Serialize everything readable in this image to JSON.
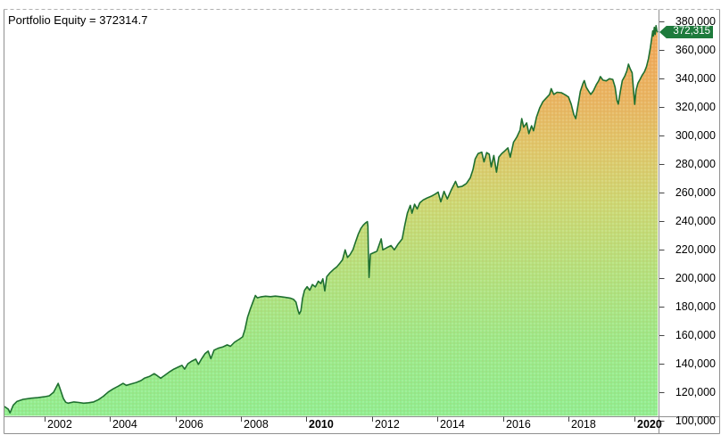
{
  "window": {
    "title": "Portfolio Equity = 372314.7"
  },
  "value_badge": {
    "label": "372,315"
  },
  "chart_data": {
    "type": "area",
    "title": "Portfolio Equity",
    "last_value": 372315,
    "x_axis": {
      "range": [
        2000.78,
        2020.72
      ],
      "ticks": [
        2002,
        2004,
        2006,
        2008,
        2010,
        2012,
        2014,
        2016,
        2018,
        2020
      ],
      "bold_ticks": [
        2010,
        2020
      ]
    },
    "y_axis": {
      "range": [
        103125,
        388125
      ],
      "tick_step": 20000,
      "ticks": [
        100000,
        120000,
        140000,
        160000,
        180000,
        200000,
        220000,
        240000,
        260000,
        280000,
        300000,
        320000,
        340000,
        360000,
        380000
      ]
    },
    "colors": {
      "line": "#1E7030",
      "badge": "#1E7B3C",
      "border": "#909090",
      "border_top": "#b0b0b0",
      "tick": "#444444",
      "text": "#000000",
      "gradient": [
        [
          0.0,
          "#90EE90"
        ],
        [
          0.19,
          "#9EE887"
        ],
        [
          0.37,
          "#B6E07C"
        ],
        [
          0.52,
          "#CCD873"
        ],
        [
          0.66,
          "#DFC76A"
        ],
        [
          0.77,
          "#E8B662"
        ],
        [
          0.9,
          "#EFAA5A"
        ],
        [
          1.0,
          "#F0A757"
        ]
      ]
    },
    "series": [
      {
        "name": "Portfolio Equity",
        "points": [
          [
            2000.78,
            110000
          ],
          [
            2000.9,
            108000
          ],
          [
            2000.95,
            105500
          ],
          [
            2001.05,
            111000
          ],
          [
            2001.16,
            113500
          ],
          [
            2001.35,
            115000
          ],
          [
            2001.6,
            115800
          ],
          [
            2001.8,
            116200
          ],
          [
            2002.0,
            116800
          ],
          [
            2002.15,
            117500
          ],
          [
            2002.28,
            120000
          ],
          [
            2002.36,
            123500
          ],
          [
            2002.42,
            126200
          ],
          [
            2002.47,
            123000
          ],
          [
            2002.53,
            119000
          ],
          [
            2002.58,
            115500
          ],
          [
            2002.65,
            113000
          ],
          [
            2002.72,
            112300
          ],
          [
            2002.9,
            113200
          ],
          [
            2003.05,
            112800
          ],
          [
            2003.2,
            112300
          ],
          [
            2003.35,
            112600
          ],
          [
            2003.5,
            113200
          ],
          [
            2003.65,
            114800
          ],
          [
            2003.8,
            117200
          ],
          [
            2003.95,
            120200
          ],
          [
            2004.1,
            122400
          ],
          [
            2004.25,
            124200
          ],
          [
            2004.4,
            126200
          ],
          [
            2004.5,
            124800
          ],
          [
            2004.62,
            125600
          ],
          [
            2004.8,
            126800
          ],
          [
            2004.95,
            128200
          ],
          [
            2005.05,
            129800
          ],
          [
            2005.2,
            131000
          ],
          [
            2005.35,
            133000
          ],
          [
            2005.45,
            131500
          ],
          [
            2005.55,
            129800
          ],
          [
            2005.65,
            131500
          ],
          [
            2005.8,
            134000
          ],
          [
            2005.95,
            136200
          ],
          [
            2006.1,
            137800
          ],
          [
            2006.2,
            138800
          ],
          [
            2006.28,
            136200
          ],
          [
            2006.38,
            140000
          ],
          [
            2006.5,
            141800
          ],
          [
            2006.62,
            143200
          ],
          [
            2006.7,
            139500
          ],
          [
            2006.8,
            143500
          ],
          [
            2006.9,
            147000
          ],
          [
            2007.0,
            148800
          ],
          [
            2007.08,
            143500
          ],
          [
            2007.18,
            149500
          ],
          [
            2007.3,
            150800
          ],
          [
            2007.45,
            151800
          ],
          [
            2007.58,
            153200
          ],
          [
            2007.68,
            152200
          ],
          [
            2007.8,
            155000
          ],
          [
            2007.95,
            157200
          ],
          [
            2008.05,
            158800
          ],
          [
            2008.12,
            164000
          ],
          [
            2008.2,
            172500
          ],
          [
            2008.28,
            178000
          ],
          [
            2008.36,
            183000
          ],
          [
            2008.44,
            187800
          ],
          [
            2008.5,
            186200
          ],
          [
            2008.6,
            186800
          ],
          [
            2008.75,
            187300
          ],
          [
            2008.9,
            187000
          ],
          [
            2009.05,
            187400
          ],
          [
            2009.2,
            187000
          ],
          [
            2009.35,
            186500
          ],
          [
            2009.5,
            186000
          ],
          [
            2009.6,
            185200
          ],
          [
            2009.68,
            183200
          ],
          [
            2009.74,
            177500
          ],
          [
            2009.78,
            174800
          ],
          [
            2009.83,
            177000
          ],
          [
            2009.88,
            186000
          ],
          [
            2009.94,
            191500
          ],
          [
            2010.02,
            194000
          ],
          [
            2010.1,
            191500
          ],
          [
            2010.18,
            195500
          ],
          [
            2010.27,
            193800
          ],
          [
            2010.36,
            197800
          ],
          [
            2010.44,
            196200
          ],
          [
            2010.5,
            199500
          ],
          [
            2010.56,
            191000
          ],
          [
            2010.62,
            201000
          ],
          [
            2010.72,
            203800
          ],
          [
            2010.82,
            206000
          ],
          [
            2010.93,
            208000
          ],
          [
            2011.02,
            210500
          ],
          [
            2011.1,
            212800
          ],
          [
            2011.18,
            219800
          ],
          [
            2011.25,
            214500
          ],
          [
            2011.33,
            216500
          ],
          [
            2011.42,
            220000
          ],
          [
            2011.5,
            225500
          ],
          [
            2011.58,
            230800
          ],
          [
            2011.66,
            234800
          ],
          [
            2011.74,
            237300
          ],
          [
            2011.81,
            238800
          ],
          [
            2011.86,
            239600
          ],
          [
            2011.875,
            236500
          ],
          [
            2011.89,
            217500
          ],
          [
            2011.91,
            200500
          ],
          [
            2011.95,
            216800
          ],
          [
            2012.05,
            217800
          ],
          [
            2012.15,
            218800
          ],
          [
            2012.28,
            227500
          ],
          [
            2012.33,
            219800
          ],
          [
            2012.45,
            221300
          ],
          [
            2012.58,
            222800
          ],
          [
            2012.68,
            219800
          ],
          [
            2012.8,
            224000
          ],
          [
            2012.92,
            227500
          ],
          [
            2013.0,
            237000
          ],
          [
            2013.08,
            245500
          ],
          [
            2013.17,
            251000
          ],
          [
            2013.22,
            245500
          ],
          [
            2013.3,
            251800
          ],
          [
            2013.38,
            248500
          ],
          [
            2013.46,
            252800
          ],
          [
            2013.56,
            254800
          ],
          [
            2013.68,
            256200
          ],
          [
            2013.8,
            257300
          ],
          [
            2013.92,
            258800
          ],
          [
            2014.02,
            260300
          ],
          [
            2014.1,
            253500
          ],
          [
            2014.2,
            260800
          ],
          [
            2014.3,
            255500
          ],
          [
            2014.42,
            261800
          ],
          [
            2014.55,
            267800
          ],
          [
            2014.62,
            263800
          ],
          [
            2014.75,
            264300
          ],
          [
            2014.88,
            266300
          ],
          [
            2015.0,
            270300
          ],
          [
            2015.08,
            276000
          ],
          [
            2015.15,
            283500
          ],
          [
            2015.24,
            287300
          ],
          [
            2015.35,
            288300
          ],
          [
            2015.42,
            281500
          ],
          [
            2015.5,
            288000
          ],
          [
            2015.58,
            286800
          ],
          [
            2015.64,
            278000
          ],
          [
            2015.72,
            286000
          ],
          [
            2015.8,
            274300
          ],
          [
            2015.87,
            284800
          ],
          [
            2015.96,
            287300
          ],
          [
            2016.06,
            289300
          ],
          [
            2016.15,
            291300
          ],
          [
            2016.22,
            284800
          ],
          [
            2016.32,
            295300
          ],
          [
            2016.42,
            298800
          ],
          [
            2016.52,
            303800
          ],
          [
            2016.57,
            311800
          ],
          [
            2016.63,
            305800
          ],
          [
            2016.72,
            308800
          ],
          [
            2016.79,
            301300
          ],
          [
            2016.87,
            306800
          ],
          [
            2016.93,
            303300
          ],
          [
            2017.02,
            312800
          ],
          [
            2017.12,
            319300
          ],
          [
            2017.22,
            323800
          ],
          [
            2017.32,
            326300
          ],
          [
            2017.42,
            328800
          ],
          [
            2017.47,
            332800
          ],
          [
            2017.55,
            328800
          ],
          [
            2017.65,
            330300
          ],
          [
            2017.78,
            330000
          ],
          [
            2017.9,
            328500
          ],
          [
            2018.0,
            327000
          ],
          [
            2018.08,
            322000
          ],
          [
            2018.16,
            314800
          ],
          [
            2018.22,
            311800
          ],
          [
            2018.28,
            320000
          ],
          [
            2018.36,
            331000
          ],
          [
            2018.44,
            336500
          ],
          [
            2018.48,
            338500
          ],
          [
            2018.54,
            333800
          ],
          [
            2018.62,
            330800
          ],
          [
            2018.68,
            328800
          ],
          [
            2018.76,
            331300
          ],
          [
            2018.85,
            335800
          ],
          [
            2018.92,
            338300
          ],
          [
            2018.97,
            341300
          ],
          [
            2019.05,
            338800
          ],
          [
            2019.15,
            338300
          ],
          [
            2019.25,
            339800
          ],
          [
            2019.35,
            339300
          ],
          [
            2019.42,
            334000
          ],
          [
            2019.48,
            324500
          ],
          [
            2019.52,
            322000
          ],
          [
            2019.58,
            331000
          ],
          [
            2019.64,
            338500
          ],
          [
            2019.72,
            341800
          ],
          [
            2019.78,
            345300
          ],
          [
            2019.83,
            350000
          ],
          [
            2019.88,
            346800
          ],
          [
            2019.94,
            344000
          ],
          [
            2019.99,
            330000
          ],
          [
            2020.02,
            321800
          ],
          [
            2020.06,
            331800
          ],
          [
            2020.12,
            336800
          ],
          [
            2020.18,
            339300
          ],
          [
            2020.25,
            342300
          ],
          [
            2020.32,
            344800
          ],
          [
            2020.38,
            348300
          ],
          [
            2020.44,
            353800
          ],
          [
            2020.5,
            361800
          ],
          [
            2020.54,
            368300
          ],
          [
            2020.57,
            373300
          ],
          [
            2020.59,
            369800
          ],
          [
            2020.62,
            375800
          ],
          [
            2020.645,
            370800
          ],
          [
            2020.67,
            377000
          ],
          [
            2020.695,
            373500
          ],
          [
            2020.72,
            372315
          ]
        ]
      }
    ]
  }
}
